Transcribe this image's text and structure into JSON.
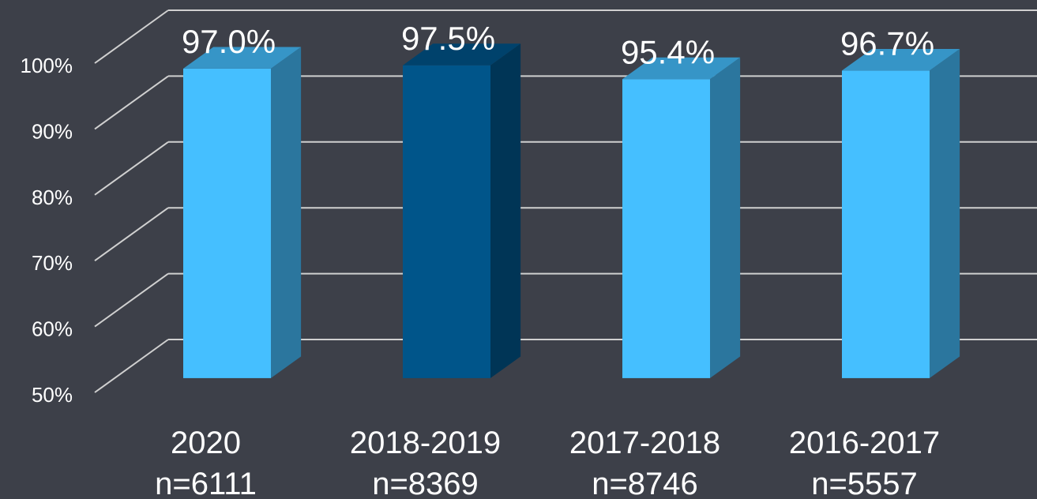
{
  "chart_data": {
    "type": "bar3d",
    "categories": [
      "2020",
      "2018-2019",
      "2017-2018",
      "2016-2017"
    ],
    "sample_sizes": [
      "n=6111",
      "n=8369",
      "n=8746",
      "n=5557"
    ],
    "values": [
      97.0,
      97.5,
      95.4,
      96.7
    ],
    "value_labels": [
      "97.0%",
      "97.5%",
      "95.4%",
      "96.7%"
    ],
    "colors": [
      "#45bfff",
      "#00558a",
      "#45bfff",
      "#45bfff"
    ],
    "ylim": [
      50,
      100
    ],
    "yticks": [
      {
        "value": 50,
        "label": "50%"
      },
      {
        "value": 60,
        "label": "60%"
      },
      {
        "value": 70,
        "label": "70%"
      },
      {
        "value": 80,
        "label": "80%"
      },
      {
        "value": 90,
        "label": "90%"
      },
      {
        "value": 100,
        "label": "100%"
      }
    ],
    "grid": true
  }
}
